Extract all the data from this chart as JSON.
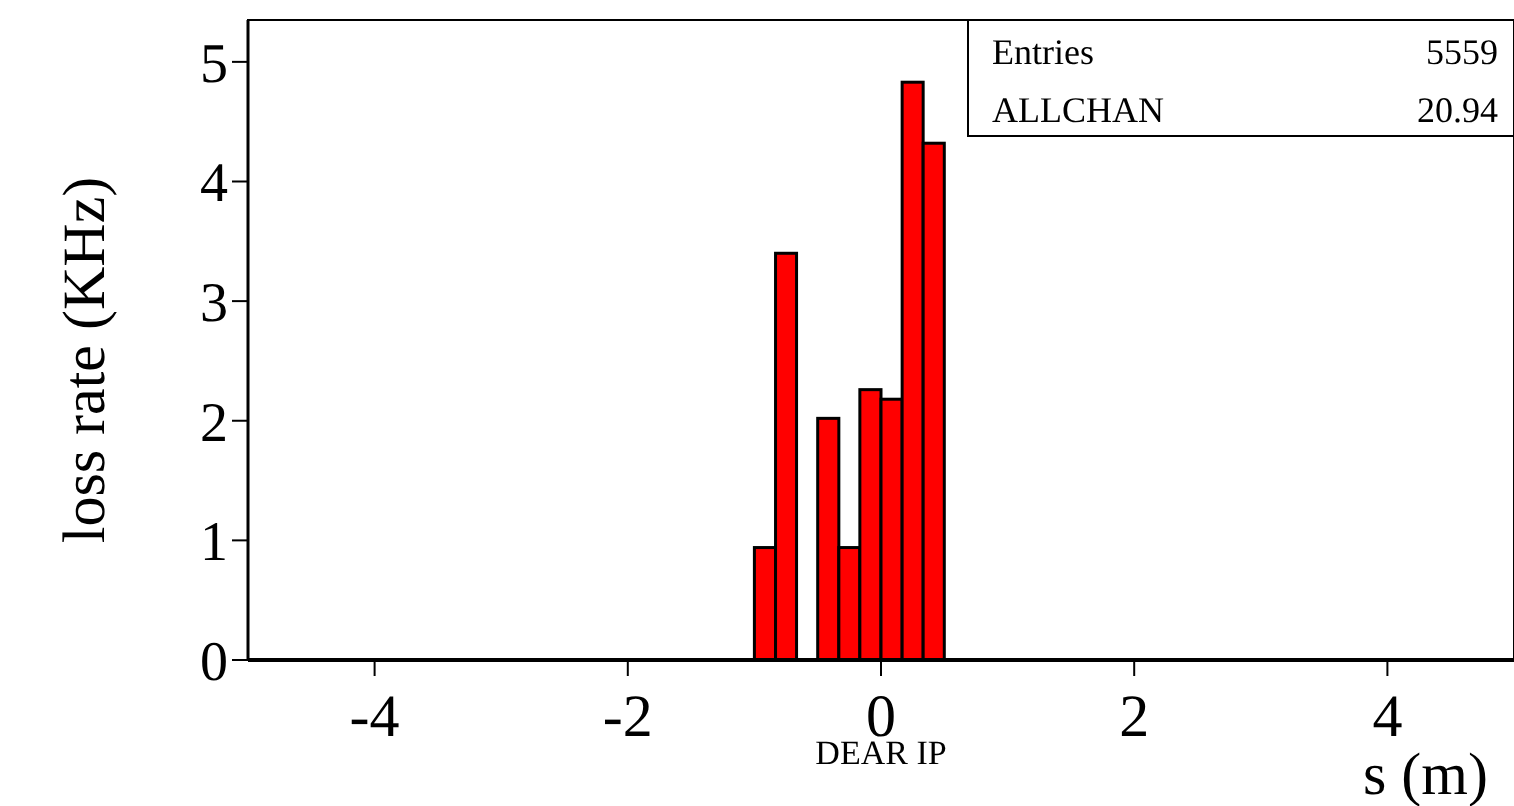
{
  "chart_data": {
    "type": "histogram",
    "xlabel": "s (m)",
    "ylabel": "loss rate (KHz)",
    "bins": [
      -1,
      -0.833,
      -0.667,
      -0.5,
      -0.333,
      -0.167,
      0,
      0.167,
      0.333,
      0.5
    ],
    "values": [
      0.94,
      3.4,
      0,
      2.02,
      0.94,
      2.26,
      2.18,
      4.83,
      4.32
    ],
    "color": "#ff0000",
    "xlim": [
      -5,
      5
    ],
    "xticks": [
      -4,
      -2,
      0,
      2,
      4
    ],
    "ylim": [
      0,
      5.35
    ],
    "yticks": [
      0,
      1,
      2,
      3,
      4,
      5
    ],
    "annotations": [
      "Entries",
      "5559",
      "ALLCHAN",
      "20.94",
      "DEAR IP"
    ],
    "grid": false
  }
}
